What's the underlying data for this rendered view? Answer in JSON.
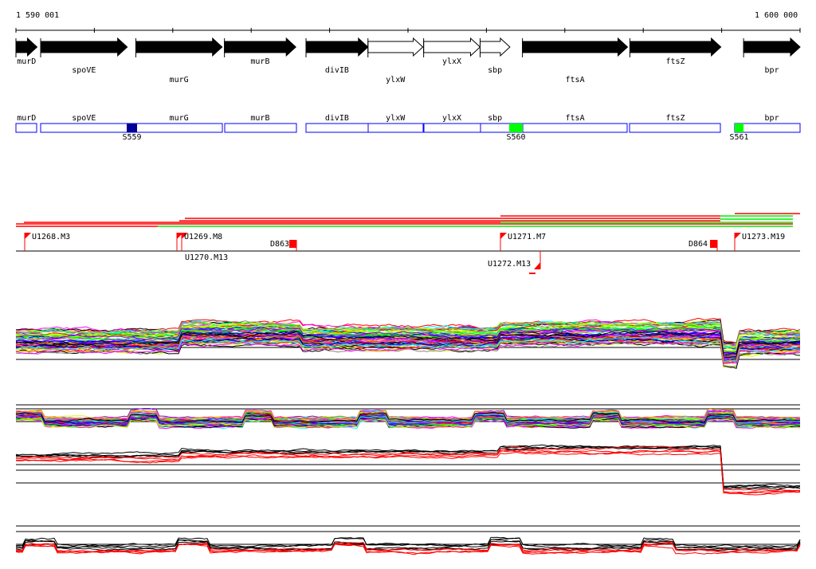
{
  "ruler": {
    "start_label": "1 590 001",
    "end_label": "1 600 000",
    "start": 1590001,
    "end": 1600000
  },
  "genes": [
    {
      "name": "murD",
      "start": 1590001,
      "end": 1590270,
      "filled": true
    },
    {
      "name": "spoVE",
      "start": 1590316,
      "end": 1591420,
      "filled": true
    },
    {
      "name": "murG",
      "start": 1591530,
      "end": 1592630,
      "filled": true
    },
    {
      "name": "murB",
      "start": 1592660,
      "end": 1593570,
      "filled": true
    },
    {
      "name": "divIB",
      "start": 1593700,
      "end": 1594490,
      "filled": true
    },
    {
      "name": "ylxW",
      "start": 1594490,
      "end": 1595190,
      "filled": false
    },
    {
      "name": "ylxX",
      "start": 1595200,
      "end": 1595920,
      "filled": false
    },
    {
      "name": "sbp",
      "start": 1595920,
      "end": 1596300,
      "filled": false
    },
    {
      "name": "ftsA",
      "start": 1596460,
      "end": 1597800,
      "filled": true
    },
    {
      "name": "ftsZ",
      "start": 1597830,
      "end": 1598990,
      "filled": true
    },
    {
      "name": "bpr",
      "start": 1599280,
      "end": 1600000,
      "filled": true
    }
  ],
  "features": [
    {
      "name": "S559",
      "color": "#000099"
    },
    {
      "name": "S560",
      "color": "#00ff00"
    },
    {
      "name": "S561",
      "color": "#00ff00"
    }
  ],
  "markers": [
    {
      "name": "U1268.M3"
    },
    {
      "name": "U1269.M8"
    },
    {
      "name": "U1270.M13"
    },
    {
      "name": "D863"
    },
    {
      "name": "U1271.M7"
    },
    {
      "name": "U1272.M13"
    },
    {
      "name": "D864"
    },
    {
      "name": "U1273.M19"
    }
  ],
  "colors": {
    "gene": "#000000",
    "box": "#0000ff",
    "marker": "#ff0000",
    "green": "#00ff00"
  }
}
